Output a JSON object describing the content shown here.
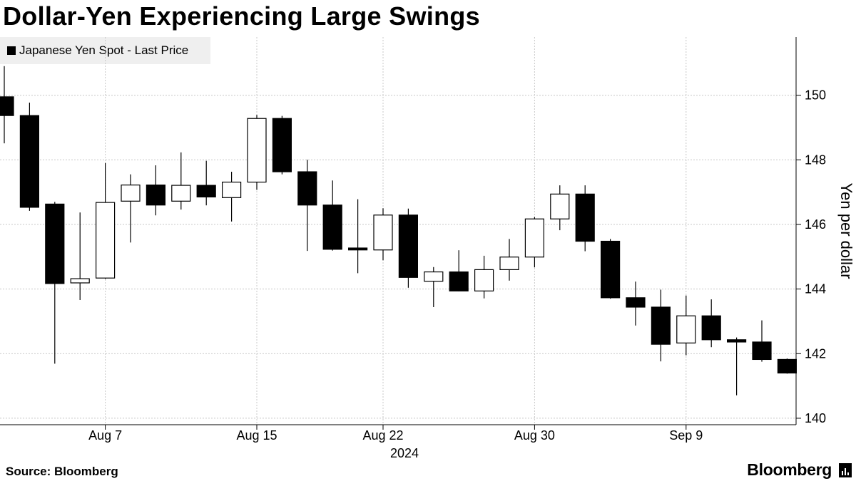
{
  "chart_data": {
    "type": "candlestick",
    "title": "Dollar-Yen Experiencing Large Swings",
    "legend": {
      "label": "Japanese Yen Spot - Last Price",
      "color": "#000000",
      "placement": "top-left"
    },
    "ylabel": "Yen per dollar",
    "ylim": [
      139.8,
      151.8
    ],
    "yticks": [
      140,
      142,
      144,
      146,
      148,
      150
    ],
    "year_label": "2024",
    "x_ticks": [
      {
        "label": "Aug 7",
        "index": 4
      },
      {
        "label": "Aug 15",
        "index": 10
      },
      {
        "label": "Aug 22",
        "index": 15
      },
      {
        "label": "Aug 30",
        "index": 21
      },
      {
        "label": "Sep 9",
        "index": 27
      }
    ],
    "candles": [
      {
        "date": "Aug 1",
        "open": 149.95,
        "high": 150.9,
        "low": 148.51,
        "close": 149.37
      },
      {
        "date": "Aug 2",
        "open": 149.37,
        "high": 149.77,
        "low": 146.42,
        "close": 146.53
      },
      {
        "date": "Aug 5",
        "open": 146.63,
        "high": 146.7,
        "low": 141.69,
        "close": 144.17
      },
      {
        "date": "Aug 6",
        "open": 144.19,
        "high": 146.37,
        "low": 143.66,
        "close": 144.32
      },
      {
        "date": "Aug 7",
        "open": 144.34,
        "high": 147.9,
        "low": 144.31,
        "close": 146.68
      },
      {
        "date": "Aug 8",
        "open": 146.72,
        "high": 147.55,
        "low": 145.44,
        "close": 147.22
      },
      {
        "date": "Aug 9",
        "open": 147.22,
        "high": 147.83,
        "low": 146.28,
        "close": 146.6
      },
      {
        "date": "Aug 12",
        "open": 146.72,
        "high": 148.23,
        "low": 146.46,
        "close": 147.21
      },
      {
        "date": "Aug 13",
        "open": 147.21,
        "high": 147.97,
        "low": 146.59,
        "close": 146.85
      },
      {
        "date": "Aug 14",
        "open": 146.83,
        "high": 147.63,
        "low": 146.09,
        "close": 147.31
      },
      {
        "date": "Aug 15",
        "open": 147.31,
        "high": 149.39,
        "low": 147.07,
        "close": 149.28
      },
      {
        "date": "Aug 16",
        "open": 149.28,
        "high": 149.36,
        "low": 147.55,
        "close": 147.63
      },
      {
        "date": "Aug 19",
        "open": 147.63,
        "high": 148.0,
        "low": 145.18,
        "close": 146.6
      },
      {
        "date": "Aug 20",
        "open": 146.6,
        "high": 147.36,
        "low": 145.19,
        "close": 145.23
      },
      {
        "date": "Aug 21",
        "open": 145.27,
        "high": 146.78,
        "low": 144.49,
        "close": 145.21
      },
      {
        "date": "Aug 22",
        "open": 145.21,
        "high": 146.5,
        "low": 144.89,
        "close": 146.29
      },
      {
        "date": "Aug 23",
        "open": 146.29,
        "high": 146.49,
        "low": 144.04,
        "close": 144.36
      },
      {
        "date": "Aug 26",
        "open": 144.24,
        "high": 144.68,
        "low": 143.44,
        "close": 144.53
      },
      {
        "date": "Aug 27",
        "open": 144.53,
        "high": 145.2,
        "low": 143.93,
        "close": 143.94
      },
      {
        "date": "Aug 28",
        "open": 143.94,
        "high": 145.03,
        "low": 143.71,
        "close": 144.6
      },
      {
        "date": "Aug 29",
        "open": 144.6,
        "high": 145.55,
        "low": 144.26,
        "close": 144.99
      },
      {
        "date": "Aug 30",
        "open": 144.99,
        "high": 146.23,
        "low": 144.67,
        "close": 146.17
      },
      {
        "date": "Sep 2",
        "open": 146.17,
        "high": 147.21,
        "low": 145.82,
        "close": 146.94
      },
      {
        "date": "Sep 3",
        "open": 146.94,
        "high": 147.21,
        "low": 145.17,
        "close": 145.48
      },
      {
        "date": "Sep 4",
        "open": 145.48,
        "high": 145.55,
        "low": 143.7,
        "close": 143.73
      },
      {
        "date": "Sep 5",
        "open": 143.73,
        "high": 144.23,
        "low": 142.87,
        "close": 143.44
      },
      {
        "date": "Sep 6",
        "open": 143.44,
        "high": 143.98,
        "low": 141.76,
        "close": 142.29
      },
      {
        "date": "Sep 9",
        "open": 142.33,
        "high": 143.8,
        "low": 141.95,
        "close": 143.17
      },
      {
        "date": "Sep 10",
        "open": 143.17,
        "high": 143.68,
        "low": 142.2,
        "close": 142.43
      },
      {
        "date": "Sep 11",
        "open": 142.43,
        "high": 142.5,
        "low": 140.71,
        "close": 142.36
      },
      {
        "date": "Sep 12",
        "open": 142.36,
        "high": 143.03,
        "low": 141.75,
        "close": 141.82
      },
      {
        "date": "Sep 13",
        "open": 141.82,
        "high": 141.85,
        "low": 141.38,
        "close": 141.4
      }
    ]
  },
  "footer": {
    "source": "Source: Bloomberg",
    "brand": "Bloomberg"
  }
}
